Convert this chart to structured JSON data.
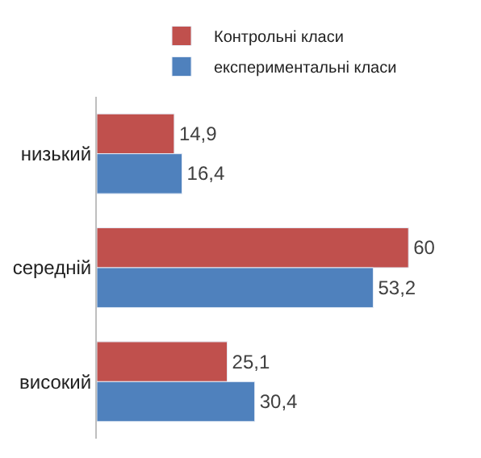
{
  "chart_data": {
    "type": "bar",
    "orientation": "horizontal",
    "categories": [
      "низький",
      "середній",
      "високий"
    ],
    "series": [
      {
        "name": "Контрольні класи",
        "color": "#c0504d",
        "values": [
          14.9,
          60,
          25.1
        ],
        "value_labels": [
          "14,9",
          "60",
          "25,1"
        ]
      },
      {
        "name": "експериментальні класи",
        "color": "#4f81bd",
        "values": [
          16.4,
          53.2,
          30.4
        ],
        "value_labels": [
          "16,4",
          "53,2",
          "30,4"
        ]
      }
    ],
    "legend": "top"
  }
}
